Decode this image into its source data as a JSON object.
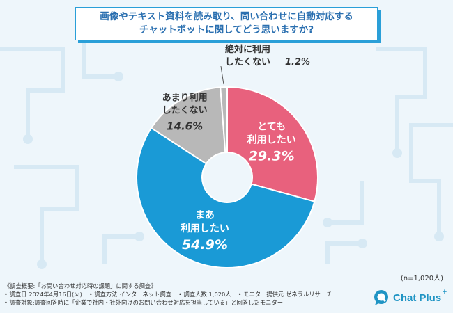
{
  "title": {
    "line1": "画像やテキスト資料を読み取り、問い合わせに自動対応する",
    "line2": "チャットボットに関してどう思いますか?"
  },
  "chart_data": {
    "type": "pie",
    "subtype": "donut",
    "title": "画像やテキスト資料を読み取り、問い合わせに自動対応するチャットボットに関してどう思いますか?",
    "categories": [
      "とても利用したい",
      "まあ利用したい",
      "あまり利用したくない",
      "絶対に利用したくない"
    ],
    "values": [
      29.3,
      54.9,
      14.6,
      1.2
    ],
    "labels": [
      {
        "lines": [
          "とても",
          "利用したい"
        ],
        "pct": "29.3%"
      },
      {
        "lines": [
          "まあ",
          "利用したい"
        ],
        "pct": "54.9%"
      },
      {
        "lines": [
          "あまり利用",
          "したくない"
        ],
        "pct": "14.6%"
      },
      {
        "lines": [
          "絶対に利用",
          "したくない"
        ],
        "pct": "1.2%"
      }
    ],
    "colors": [
      "#e8617d",
      "#1a9ad6",
      "#b8b8b8",
      "#b8b8b8"
    ],
    "label_colors": [
      "#ffffff",
      "#ffffff",
      "#333333",
      "#333333"
    ],
    "n_label": "(n=1,020人)"
  },
  "footer": {
    "line1": "《調査概要:「お問い合わせ対応時の課題」に関する調査》",
    "line2a": "• 調査日:2024年4月16日(火)",
    "line2b": "• 調査方法:インターネット調査",
    "line2c": "• 調査人数:1,020人",
    "line2d": "• モニター提供元:ゼネラルリサーチ",
    "line3": "• 調査対象:調査回答時に「企業で社内・社外向けのお問い合わせ対応を担当している」と回答したモニター"
  },
  "logo": {
    "text": "Chat Plus",
    "plus": "+"
  }
}
